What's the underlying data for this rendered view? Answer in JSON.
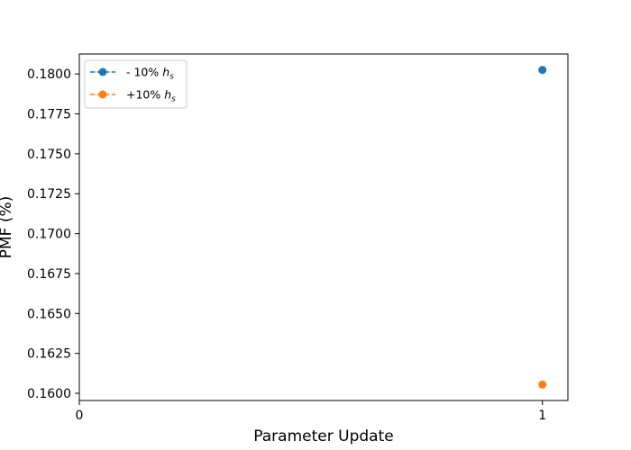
{
  "chart_data": {
    "type": "scatter",
    "xlabel": "Parameter Update",
    "ylabel": "PMF (%)",
    "xlim": [
      0,
      1.055
    ],
    "ylim": [
      0.15955,
      0.18125
    ],
    "x_ticks": [
      0,
      1
    ],
    "x_tick_labels": [
      "0",
      "1"
    ],
    "y_ticks": [
      0.16,
      0.1625,
      0.165,
      0.1675,
      0.17,
      0.1725,
      0.175,
      0.1775,
      0.18
    ],
    "y_tick_labels": [
      "0.1600",
      "0.1625",
      "0.1650",
      "0.1675",
      "0.1700",
      "0.1725",
      "0.1750",
      "0.1775",
      "0.1800"
    ],
    "grid": false,
    "legend_position": "top-left",
    "series": [
      {
        "name": "- 10%",
        "name_symbol": "h",
        "name_subscript": "s",
        "color": "#1f77b4",
        "linestyle": "dashed",
        "marker": "circle",
        "x": [
          1
        ],
        "y": [
          0.18025
        ]
      },
      {
        "name": "+10%",
        "name_symbol": "h",
        "name_subscript": "s",
        "color": "#ff7f0e",
        "linestyle": "dashed",
        "marker": "circle",
        "x": [
          1
        ],
        "y": [
          0.16055
        ]
      }
    ]
  }
}
